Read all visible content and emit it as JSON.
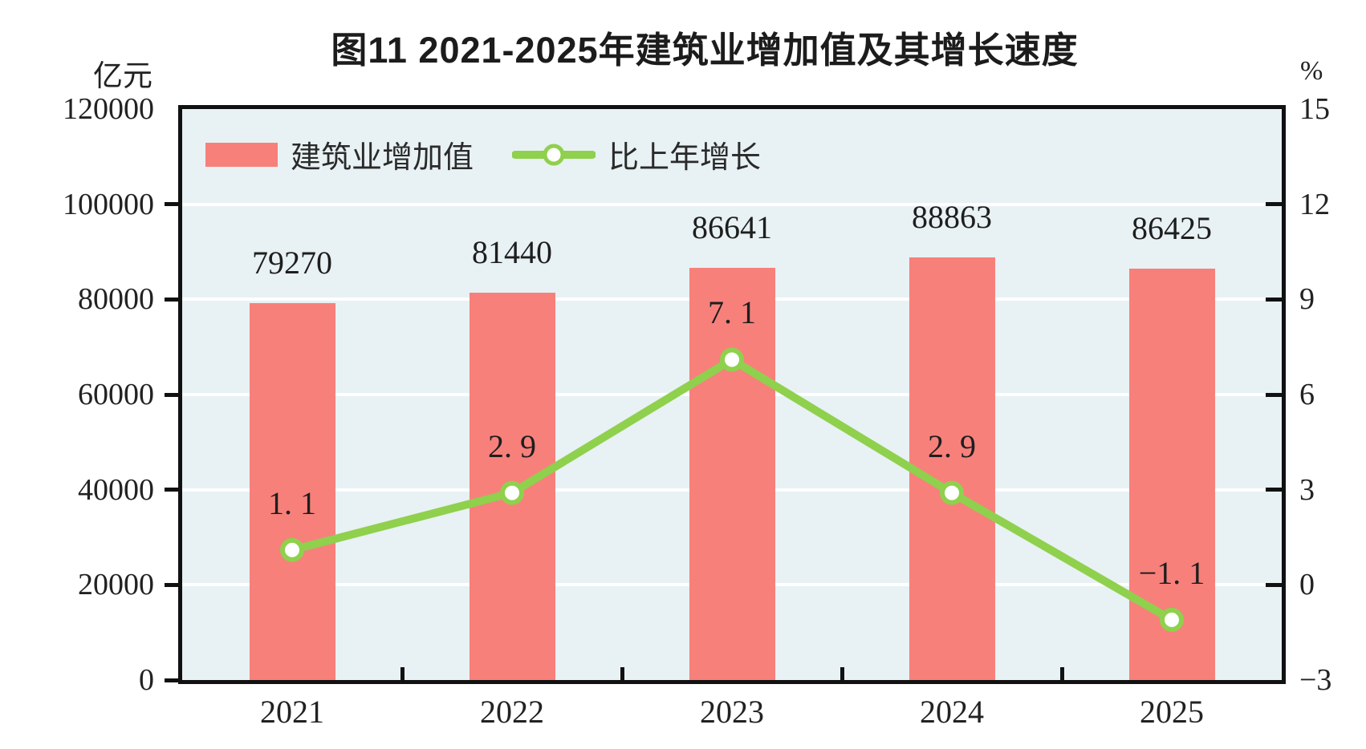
{
  "chart_data": {
    "type": "bar+line",
    "title": "图11  2021-2025年建筑业增加值及其增长速度",
    "categories": [
      "2021",
      "2022",
      "2023",
      "2024",
      "2025"
    ],
    "series": [
      {
        "name": "建筑业增加值",
        "type": "bar",
        "axis": "left",
        "values": [
          79270,
          81440,
          86641,
          88863,
          86425
        ],
        "data_labels": [
          "79270",
          "81440",
          "86641",
          "88863",
          "86425"
        ],
        "color": "#f7807b"
      },
      {
        "name": "比上年增长",
        "type": "line",
        "axis": "right",
        "values": [
          1.1,
          2.9,
          7.1,
          2.9,
          -1.1
        ],
        "data_labels": [
          "1. 1",
          "2. 9",
          "7. 1",
          "2. 9",
          "−1. 1"
        ],
        "color": "#8fd04d",
        "marker": "circle",
        "marker_fill": "#ffffff"
      }
    ],
    "left_axis": {
      "unit": "亿元",
      "min": 0,
      "max": 120000,
      "step": 20000,
      "tick_labels": [
        "120000",
        "100000",
        "80000",
        "60000",
        "40000",
        "20000",
        "0"
      ]
    },
    "right_axis": {
      "unit": "%",
      "min": -3,
      "max": 15,
      "step": 3,
      "tick_labels": [
        "15",
        "12",
        "9",
        "6",
        "3",
        "0",
        "−3"
      ]
    },
    "grid": true,
    "legend_position": "top-left-inside",
    "colors": {
      "plot_background": "#e8f1f3",
      "grid_line": "#ffffff",
      "frame": "#111111",
      "text": "#222222",
      "bar": "#f7807b",
      "line": "#8fd04d",
      "marker_fill": "#ffffff"
    }
  }
}
